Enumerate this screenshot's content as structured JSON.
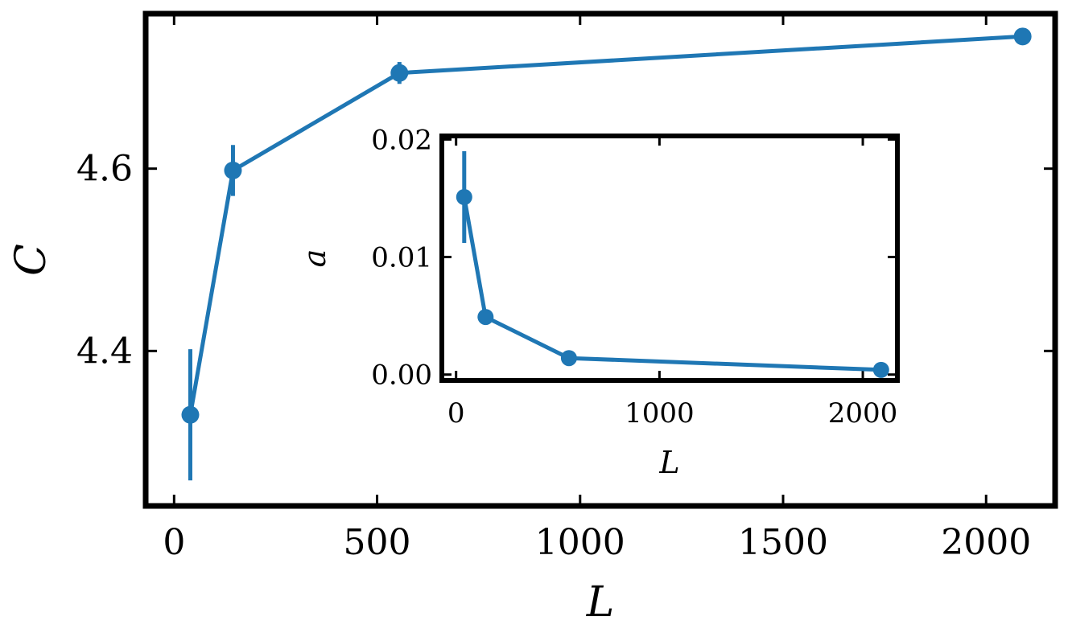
{
  "chart_data": [
    {
      "type": "line",
      "panel": "main",
      "xlabel": "L",
      "ylabel": "C",
      "xlim": [
        -70,
        2170
      ],
      "ylim": [
        4.23,
        4.77
      ],
      "xticks": [
        0,
        500,
        1000,
        1500,
        2000
      ],
      "xtick_labels": [
        "0",
        "500",
        "1000",
        "1500",
        "2000"
      ],
      "yticks": [
        4.4,
        4.6
      ],
      "ytick_labels": [
        "4.4",
        "4.6"
      ],
      "color": "#1f77b4",
      "grid": false,
      "series": [
        {
          "x": [
            40,
            145,
            555,
            2090
          ],
          "y": [
            4.33,
            4.598,
            4.705,
            4.745
          ],
          "yerr": [
            0.072,
            0.028,
            0.012,
            0.003
          ]
        }
      ]
    },
    {
      "type": "line",
      "panel": "inset",
      "xlabel": "L",
      "ylabel": "a",
      "xlim": [
        -70,
        2170
      ],
      "ylim": [
        -0.0005,
        0.0203
      ],
      "xticks": [
        0,
        1000,
        2000
      ],
      "xtick_labels": [
        "0",
        "1000",
        "2000"
      ],
      "yticks": [
        0.0,
        0.01,
        0.02
      ],
      "ytick_labels": [
        "0.00",
        "0.01",
        "0.02"
      ],
      "color": "#1f77b4",
      "grid": false,
      "series": [
        {
          "x": [
            40,
            145,
            555,
            2090
          ],
          "y": [
            0.0151,
            0.0049,
            0.0014,
            0.0004
          ],
          "yerr": [
            0.0039,
            0.0,
            0.0,
            0.0
          ]
        }
      ]
    }
  ]
}
